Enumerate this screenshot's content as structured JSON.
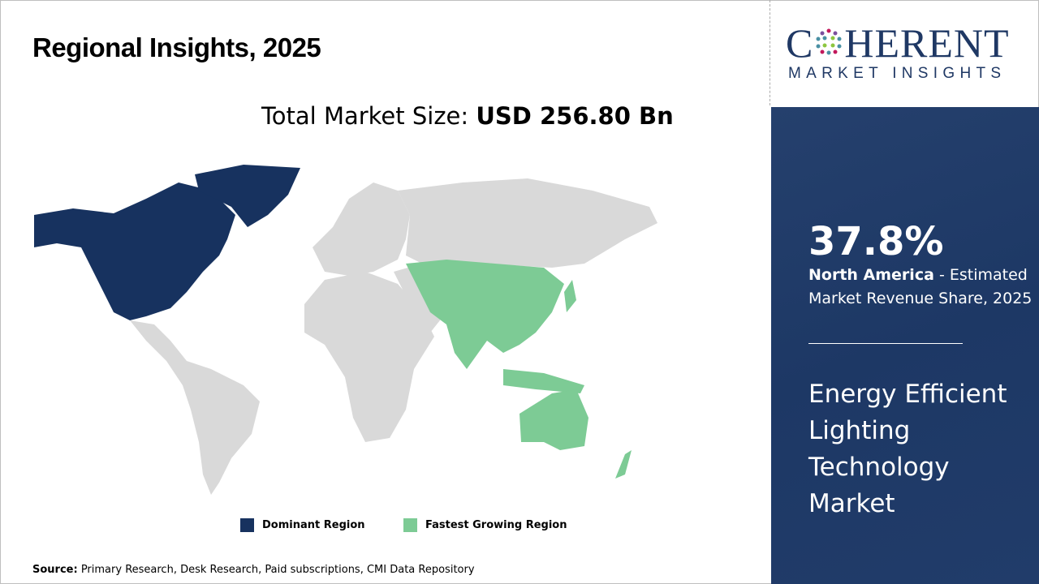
{
  "header": {
    "title": "Regional Insights, 2025"
  },
  "summary": {
    "total_label": "Total Market Size:",
    "total_value": "USD 256.80 Bn"
  },
  "map": {
    "colors": {
      "dominant": "#17325f",
      "fastest": "#7dcb95",
      "other": "#d9d9d9"
    },
    "dominant_region": "North America",
    "fastest_growing_region": "Asia Pacific"
  },
  "legend": [
    {
      "label": "Dominant Region",
      "color": "#17325f"
    },
    {
      "label": "Fastest Growing Region",
      "color": "#7dcb95"
    }
  ],
  "source": {
    "label": "Source:",
    "text": " Primary Research, Desk Research, Paid subscriptions, CMI Data Repository"
  },
  "logo": {
    "name_left": "C",
    "name_right": "HERENT",
    "tagline": "MARKET INSIGHTS"
  },
  "panel": {
    "share": "37.8%",
    "region": "North America",
    "desc": " - Estimated Market Revenue Share, 2025",
    "market_name": "Energy Efficient Lighting Technology Market"
  }
}
